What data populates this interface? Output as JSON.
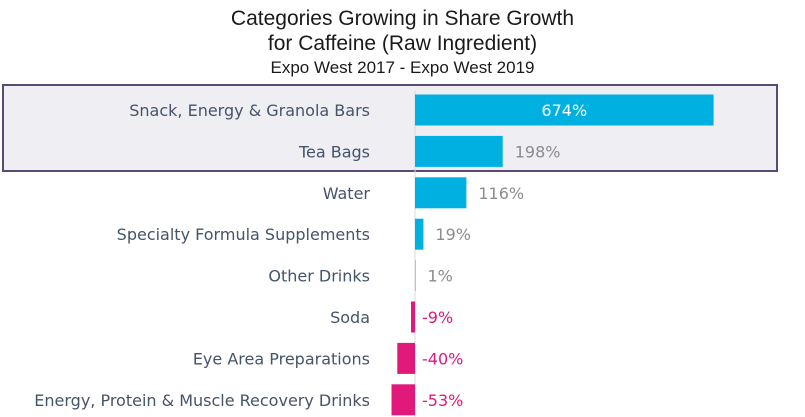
{
  "colors": {
    "positive": "#00b0e0",
    "negative": "#e0197a",
    "axis": "#d9d9d9",
    "label_gray": "#8c8c8c",
    "label_white": "#ffffff",
    "label_negative": "#e0197a",
    "highlight_border": "#5a4a78",
    "highlight_fill": "#efeef3"
  },
  "chart_data": {
    "type": "bar",
    "orientation": "horizontal",
    "title": "Categories Growing in Share Growth",
    "title_line2": "for Caffeine (Raw Ingredient)",
    "subtitle": "Expo West 2017 - Expo West 2019",
    "xlabel": "",
    "ylabel": "",
    "unit": "%",
    "xlim": [
      -70,
      700
    ],
    "grid": false,
    "legend": "none",
    "highlighted_categories": [
      "Snack, Energy & Granola Bars",
      "Tea Bags"
    ],
    "categories": [
      "Snack, Energy & Granola Bars",
      "Tea Bags",
      "Water",
      "Specialty Formula Supplements",
      "Other Drinks",
      "Soda",
      "Eye Area Preparations",
      "Energy, Protein & Muscle Recovery Drinks"
    ],
    "values": [
      674,
      198,
      116,
      19,
      1,
      -9,
      -40,
      -53
    ],
    "value_labels": [
      "674%",
      "198%",
      "116%",
      "19%",
      "1%",
      "-9%",
      "-40%",
      "-53%"
    ]
  }
}
